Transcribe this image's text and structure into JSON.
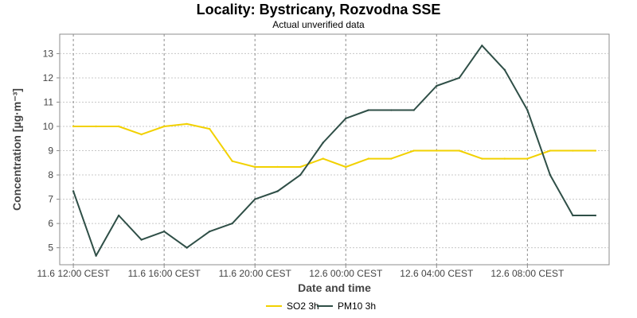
{
  "chart_data": {
    "type": "line",
    "title": "Locality: Bystricany, Rozvodna SSE",
    "subtitle": "Actual unverified data",
    "xlabel": "Date and time",
    "ylabel": "Concentration [µg·m⁻³]",
    "ylim": [
      4.3,
      13.8
    ],
    "y_ticks": [
      5,
      6,
      7,
      8,
      9,
      10,
      11,
      12,
      13
    ],
    "x_tick_hours": [
      0,
      4,
      8,
      12,
      16,
      20
    ],
    "x_tick_labels": [
      "11.6 12:00 CEST",
      "11.6 16:00 CEST",
      "11.6 20:00 CEST",
      "12.6 00:00 CEST",
      "12.6 04:00 CEST",
      "12.6 08:00 CEST"
    ],
    "x_range_hours": [
      -0.6,
      23.6
    ],
    "x_hours": [
      0,
      1,
      2,
      3,
      4,
      5,
      6,
      7,
      8,
      9,
      10,
      11,
      12,
      13,
      14,
      15,
      16,
      17,
      18,
      19,
      20,
      21,
      22,
      23
    ],
    "grid": true,
    "legend_position": "bottom",
    "series": [
      {
        "name": "SO2 3h",
        "color": "#f2d100",
        "values": [
          10.0,
          10.0,
          10.0,
          9.67,
          10.0,
          10.1,
          9.9,
          8.57,
          8.33,
          8.33,
          8.33,
          8.67,
          8.33,
          8.67,
          8.67,
          9.0,
          9.0,
          9.0,
          8.67,
          8.67,
          8.67,
          9.0,
          9.0,
          9.0
        ]
      },
      {
        "name": "PM10 3h",
        "color": "#2f4f47",
        "values": [
          7.33,
          4.67,
          6.33,
          5.33,
          5.67,
          5.0,
          5.67,
          6.0,
          7.0,
          7.33,
          8.0,
          9.33,
          10.33,
          10.67,
          10.67,
          10.67,
          11.67,
          12.0,
          13.33,
          12.33,
          10.67,
          8.0,
          6.33,
          6.33
        ]
      }
    ]
  }
}
